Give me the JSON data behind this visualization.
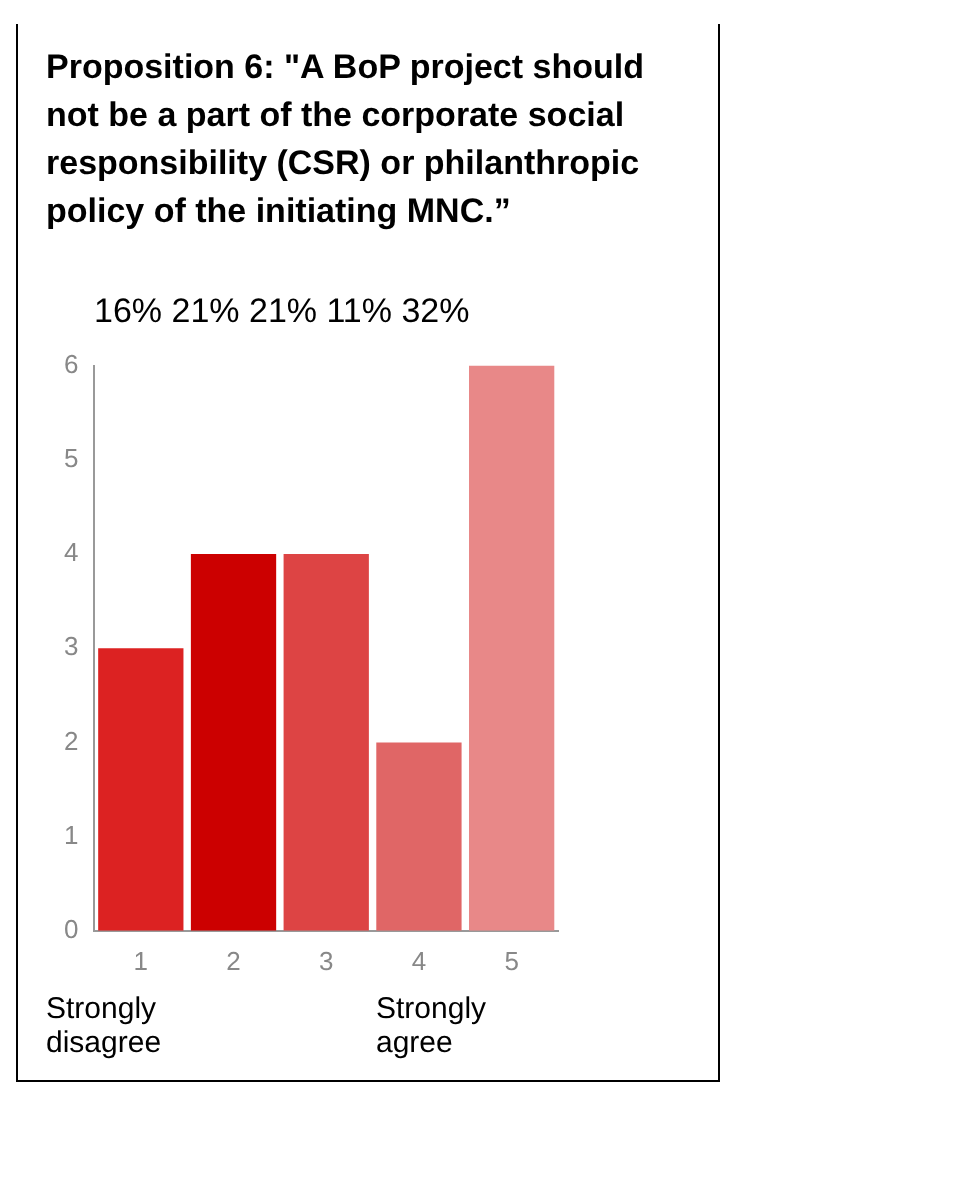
{
  "chart_data": {
    "type": "bar",
    "title": "Proposition 6: \"A BoP project should not be a part of the corporate social responsibility (CSR) or philanthropic policy of the initiating MNC.”",
    "subtitle": "16% 21% 21% 11% 32%",
    "categories": [
      "1",
      "2",
      "3",
      "4",
      "5"
    ],
    "values": [
      3,
      4,
      4,
      2,
      6
    ],
    "colors": [
      "#dc2222",
      "#cc0000",
      "#dd4444",
      "#e06666",
      "#e88888"
    ],
    "ylim": [
      0,
      6
    ],
    "yticks": [
      0,
      1,
      2,
      3,
      4,
      5,
      6
    ],
    "grid": false,
    "legend": false,
    "annotations": [
      "Strongly disagree",
      "Strongly agree"
    ]
  }
}
